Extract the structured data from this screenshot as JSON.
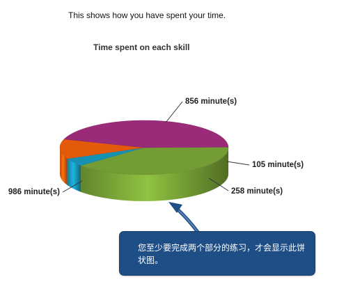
{
  "intro_text": "This shows how you have spent your time.",
  "callout": {
    "text": "您至少要完成两个部分的练习，才会显示此饼状图。"
  },
  "colors": {
    "green": "#739c34",
    "teal": "#1691b3",
    "orange": "#e35a0a",
    "magenta": "#9a2b78",
    "callout_bg": "#1f4e86"
  },
  "chart_data": {
    "type": "pie",
    "title": "Time spent on each skill",
    "style": "3d",
    "slices": [
      {
        "value": 856,
        "label": "856 minute(s)",
        "color": "#739c34"
      },
      {
        "value": 105,
        "label": "105 minute(s)",
        "color": "#1691b3"
      },
      {
        "value": 258,
        "label": "258 minute(s)",
        "color": "#e35a0a"
      },
      {
        "value": 986,
        "label": "986 minute(s)",
        "color": "#9a2b78"
      }
    ]
  }
}
